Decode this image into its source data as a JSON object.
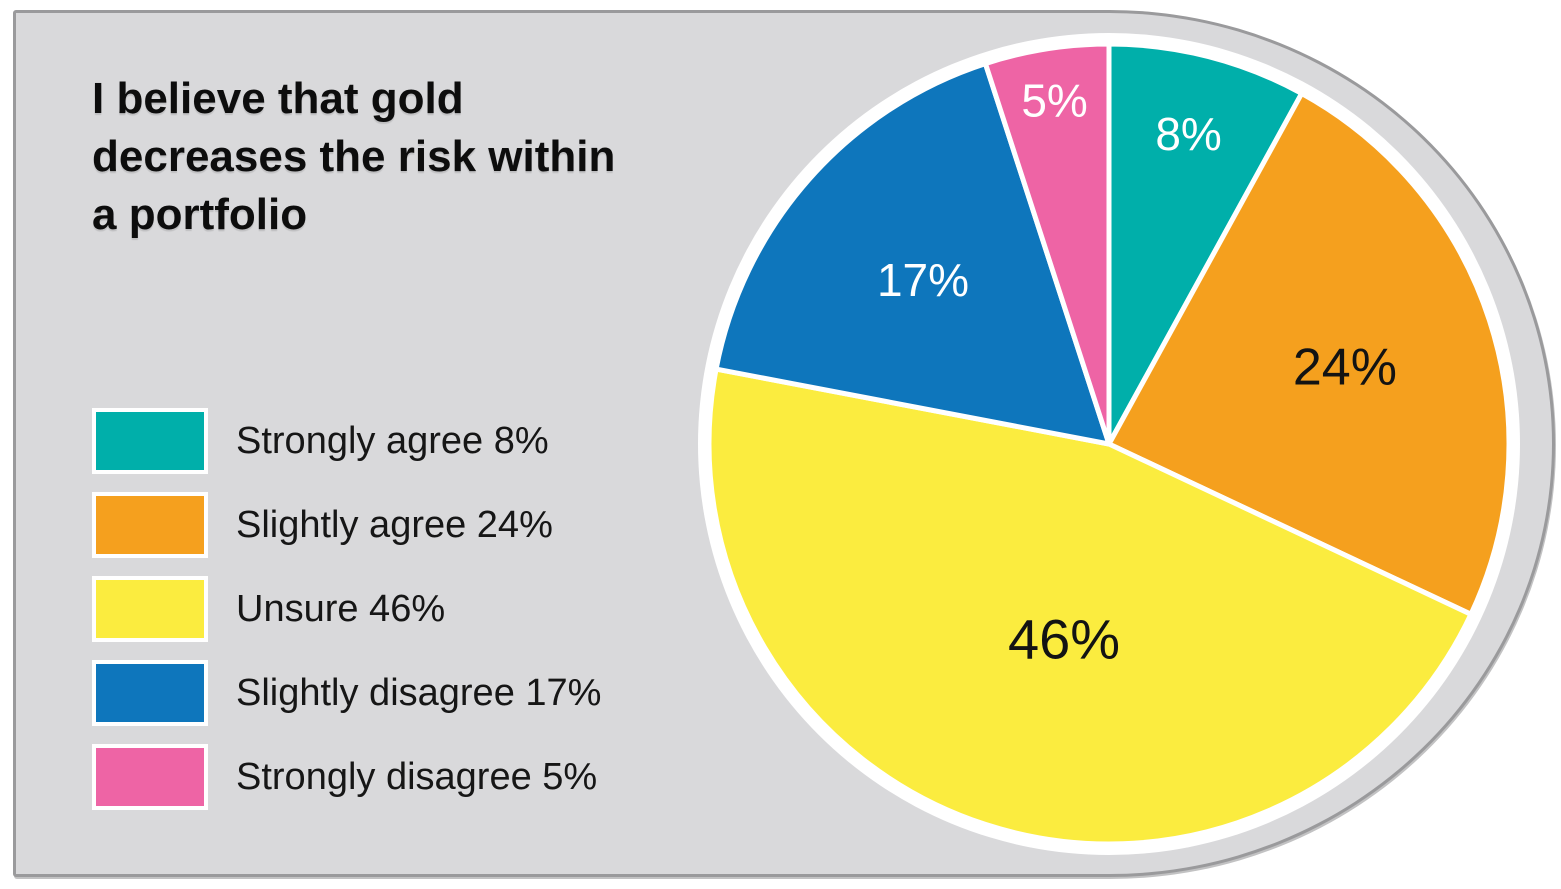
{
  "panel": {
    "background": "#d9d9db",
    "border_color": "#9a9a9c"
  },
  "title": {
    "text": "I believe that gold decreases the risk within a portfolio",
    "lines": [
      "I believe that gold",
      "decreases the risk within",
      "a portfolio"
    ]
  },
  "legend": {
    "position": "left",
    "items": [
      {
        "label": "Strongly agree 8%",
        "color": "#00afaa"
      },
      {
        "label": "Slightly agree 24%",
        "color": "#f5a01e"
      },
      {
        "label": "Unsure 46%",
        "color": "#fbec3f"
      },
      {
        "label": "Slightly disagree 17%",
        "color": "#0e76bc"
      },
      {
        "label": "Strongly disagree 5%",
        "color": "#ee64a5"
      }
    ]
  },
  "chart_data": {
    "type": "pie",
    "title": "I believe that gold decreases the risk within a portfolio",
    "categories": [
      "Strongly agree",
      "Slightly agree",
      "Unsure",
      "Slightly disagree",
      "Strongly disagree"
    ],
    "values": [
      8,
      24,
      46,
      17,
      5
    ],
    "unit": "%",
    "colors": [
      "#00afaa",
      "#f5a01e",
      "#fbec3f",
      "#0e76bc",
      "#ee64a5"
    ],
    "slice_labels": [
      "8%",
      "24%",
      "46%",
      "17%",
      "5%"
    ],
    "slice_label_colors": [
      "#ffffff",
      "#131313",
      "#131313",
      "#ffffff",
      "#ffffff"
    ],
    "start_angle_deg": 0,
    "direction": "clockwise",
    "legend_position": "left",
    "layout": {
      "center": [
        1109,
        444
      ],
      "radius": 400,
      "ring_radius": 411,
      "ring_color": "#ffffff",
      "slice_gap_stroke": "#ffffff",
      "slice_gap_width": 5,
      "label_radius_factors": [
        0.8,
        0.62,
        0.5,
        0.62,
        0.87
      ],
      "label_angle_offsets_deg": [
        0,
        0,
        -5,
        0,
        0
      ],
      "label_font_sizes": [
        46,
        52,
        56,
        46,
        46
      ]
    }
  }
}
